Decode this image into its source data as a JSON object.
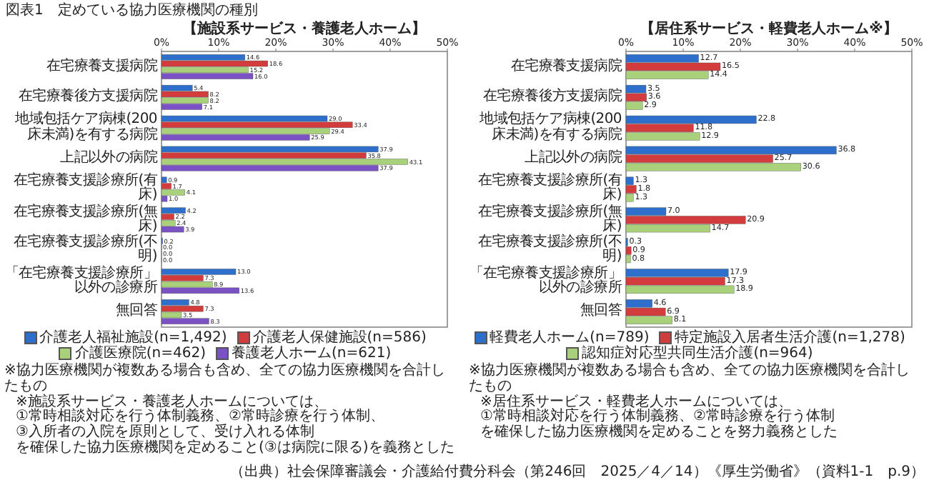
{
  "chart_data": [
    {
      "type": "bar",
      "orientation": "horizontal",
      "title": "図表1　定めている協力医療機関の種別",
      "subtitle": "【施設系サービス・養護老人ホーム】",
      "categories": [
        "在宅療養支援病院",
        "在宅療養後方支援病院",
        "地域包括ケア病棟(200床未満)を有する病院",
        "上記以外の病院",
        "在宅療養支援診療所(有床)",
        "在宅療養支援診療所(無床)",
        "在宅療養支援診療所(不明)",
        "「在宅療養支援診療所」以外の診療所",
        "無回答"
      ],
      "series": [
        {
          "name": "介護老人福祉施設(n=1,492)",
          "color": "#2e6fcb",
          "values": [
            14.6,
            5.4,
            29.0,
            37.9,
            0.9,
            4.2,
            0.2,
            13.0,
            4.8
          ],
          "value_labels": [
            "14.6",
            "5.4",
            "29.0",
            "37.9",
            "0.9",
            "4.2",
            "0.2",
            "13.0",
            "4.8"
          ]
        },
        {
          "name": "介護老人保健施設(n=586)",
          "color": "#d23c3c",
          "values": [
            18.6,
            8.2,
            33.4,
            35.8,
            1.7,
            2.2,
            0.0,
            7.3,
            7.3
          ],
          "value_labels": [
            "18.6",
            "8.2",
            "33.4",
            "35.8",
            "1.7",
            "2.2",
            "0.0",
            "7.3",
            "7.3"
          ]
        },
        {
          "name": "介護医療院(n=462)",
          "color": "#a9d07a",
          "values": [
            15.2,
            8.2,
            29.4,
            43.1,
            4.1,
            2.4,
            0.0,
            8.9,
            3.5
          ],
          "value_labels": [
            "15.2",
            "8.2",
            "29.4",
            "43.1",
            "4.1",
            "2.4",
            "0.0",
            "8.9",
            "3.5"
          ]
        },
        {
          "name": "養護老人ホーム(n=621)",
          "color": "#7b52c4",
          "values": [
            16.0,
            7.1,
            25.9,
            37.9,
            1.0,
            3.9,
            0.0,
            13.6,
            8.3
          ],
          "value_labels": [
            "16.0",
            "7.1",
            "25.9",
            "37.9",
            "1.0",
            "3.9",
            "0.0",
            "13.6",
            "8.3"
          ]
        }
      ],
      "xlim": [
        0,
        50
      ],
      "xticks": [
        {
          "value": 0,
          "label": "0%"
        },
        {
          "value": 10,
          "label": "10%"
        },
        {
          "value": 20,
          "label": "20%"
        },
        {
          "value": 30,
          "label": "30%"
        },
        {
          "value": 40,
          "label": "40%"
        },
        {
          "value": 50,
          "label": "50%"
        }
      ],
      "legend": "bottom",
      "annotations": [
        "※協力医療機関が複数ある場合も含め、全ての協力医療機関を合計したもの",
        "※施設系サービス・養護老人ホームについては、",
        "①常時相談対応を行う体制義務、②常時診療を行う体制、",
        "③入所者の入院を原則として、受け入れる体制",
        "を確保した協力医療機関を定めること(③は病院に限る)を義務とした"
      ]
    },
    {
      "type": "bar",
      "orientation": "horizontal",
      "subtitle": "【居住系サービス・軽費老人ホーム※】",
      "categories": [
        "在宅療養支援病院",
        "在宅療養後方支援病院",
        "地域包括ケア病棟(200床未満)を有する病院",
        "上記以外の病院",
        "在宅療養支援診療所(有床)",
        "在宅療養支援診療所(無床)",
        "在宅療養支援診療所(不明)",
        "「在宅療養支援診療所」以外の診療所",
        "無回答"
      ],
      "series": [
        {
          "name": "軽費老人ホーム(n=789)",
          "color": "#2e6fcb",
          "values": [
            12.7,
            3.5,
            22.8,
            36.8,
            1.3,
            7.0,
            0.3,
            17.9,
            4.6
          ],
          "value_labels": [
            "12.7",
            "3.5",
            "22.8",
            "36.8",
            "1.3",
            "7.0",
            "0.3",
            "17.9",
            "4.6"
          ]
        },
        {
          "name": "特定施設入居者生活介護(n=1,278)",
          "color": "#d23c3c",
          "values": [
            16.5,
            3.6,
            11.8,
            25.7,
            1.8,
            20.9,
            0.9,
            17.3,
            6.9
          ],
          "value_labels": [
            "16.5",
            "3.6",
            "11.8",
            "25.7",
            "1.8",
            "20.9",
            "0.9",
            "17.3",
            "6.9"
          ]
        },
        {
          "name": "認知症対応型共同生活介護(n=964)",
          "color": "#a9d07a",
          "values": [
            14.4,
            2.9,
            12.9,
            30.6,
            1.3,
            14.7,
            0.8,
            18.9,
            8.1
          ],
          "value_labels": [
            "14.4",
            "2.9",
            "12.9",
            "30.6",
            "1.3",
            "14.7",
            "0.8",
            "18.9",
            "8.1"
          ]
        }
      ],
      "xlim": [
        0,
        50
      ],
      "xticks": [
        {
          "value": 0,
          "label": "0%"
        },
        {
          "value": 10,
          "label": "10%"
        },
        {
          "value": 20,
          "label": "20%"
        },
        {
          "value": 30,
          "label": "30%"
        },
        {
          "value": 40,
          "label": "40%"
        },
        {
          "value": 50,
          "label": "50%"
        }
      ],
      "legend": "bottom",
      "annotations": [
        "※協力医療機関が複数ある場合も含め、全ての協力医療機関を合計したもの",
        "※居住系サービス・軽費老人ホームについては、",
        "①常時相談対応を行う体制義務、②常時診療を行う体制",
        "を確保した協力医療機関を定めることを努力義務とした",
        "（出典）社会保障審議会・介護給付費分科会（第246回　2025／4／14）《厚生労働省》（資料1-1　p.9）"
      ]
    }
  ]
}
